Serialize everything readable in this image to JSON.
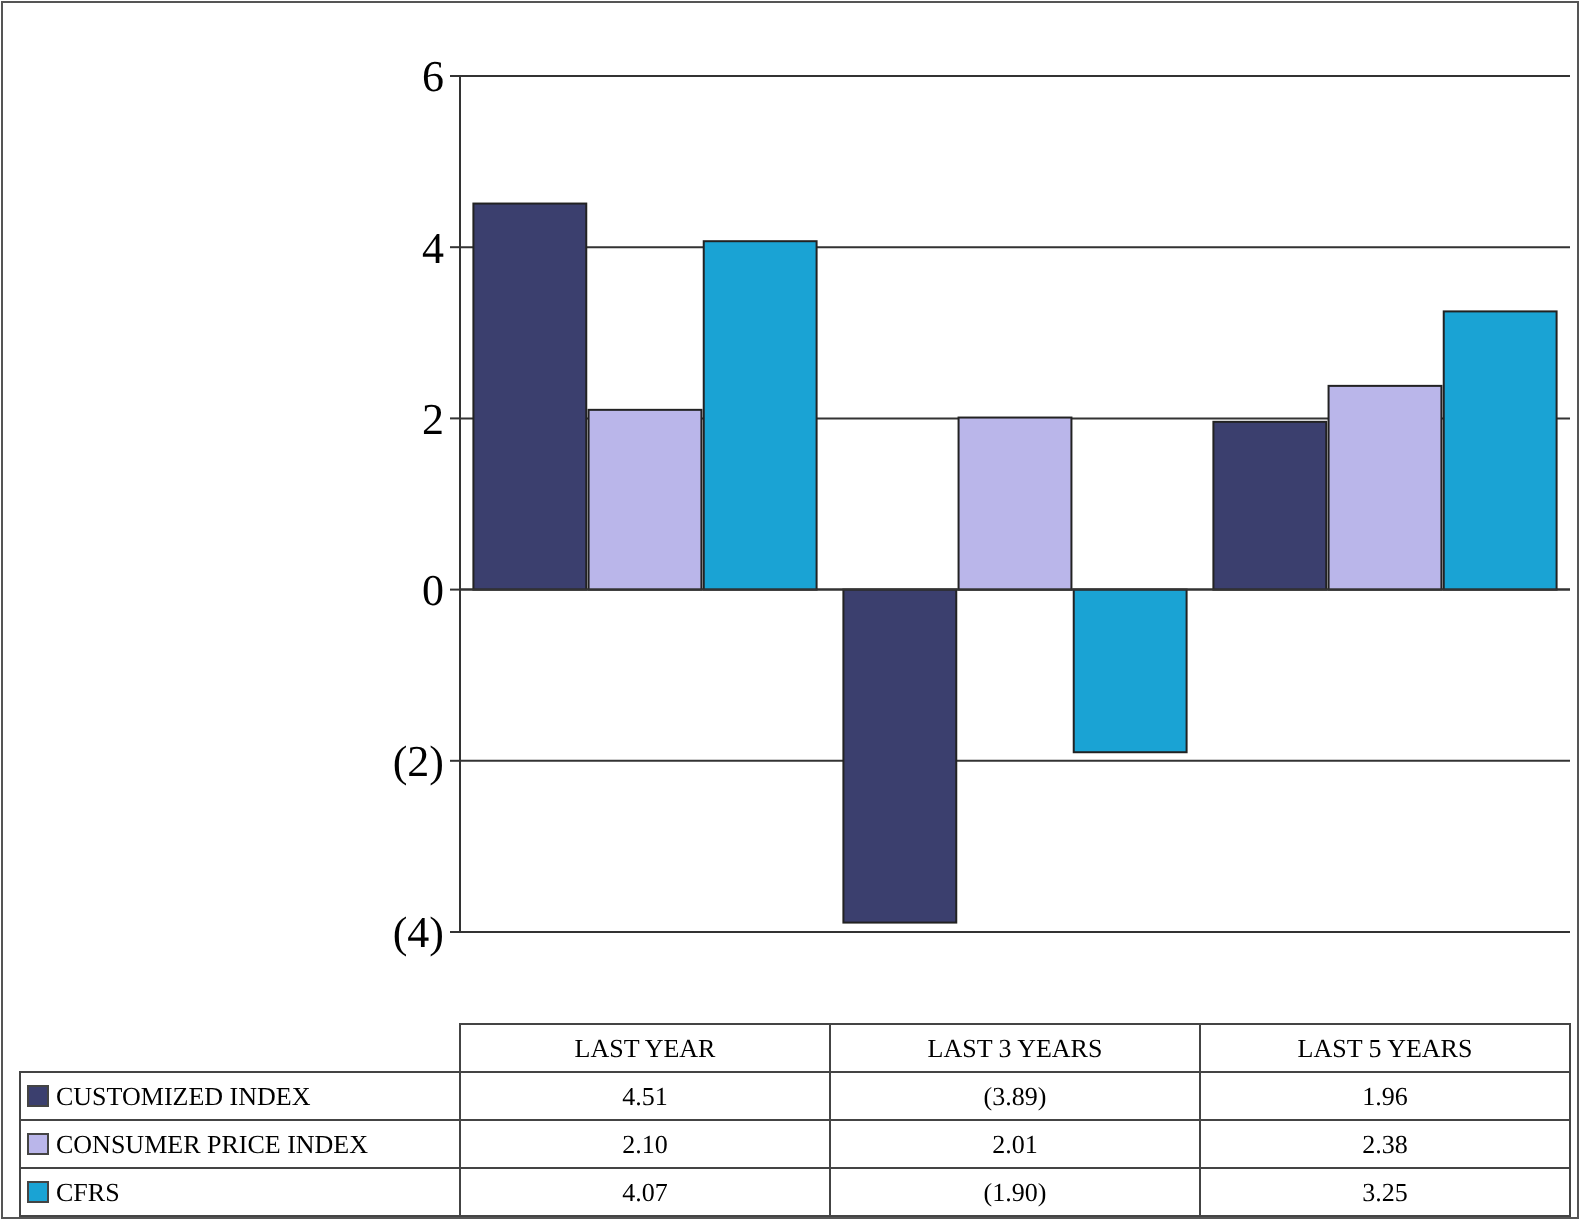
{
  "chart_data": {
    "type": "bar",
    "categories": [
      "LAST YEAR",
      "LAST 3 YEARS",
      "LAST 5 YEARS"
    ],
    "series": [
      {
        "name": "CUSTOMIZED INDEX",
        "color": "#3b3f6e",
        "values": [
          4.51,
          -3.89,
          1.96
        ],
        "value_labels": [
          "4.51",
          "(3.89)",
          "1.96"
        ]
      },
      {
        "name": "CONSUMER PRICE INDEX",
        "color": "#bab6ea",
        "values": [
          2.1,
          2.01,
          2.38
        ],
        "value_labels": [
          "2.10",
          "2.01",
          "2.38"
        ]
      },
      {
        "name": "CFRS",
        "color": "#1aa3d4",
        "values": [
          4.07,
          -1.9,
          3.25
        ],
        "value_labels": [
          "4.07",
          "(1.90)",
          "3.25"
        ]
      }
    ],
    "ylim": [
      -4,
      6
    ],
    "yticks": [
      {
        "value": -4,
        "label": "(4)"
      },
      {
        "value": -2,
        "label": "(2)"
      },
      0,
      2,
      4,
      6
    ],
    "grid": "y",
    "legend": "bottom"
  }
}
